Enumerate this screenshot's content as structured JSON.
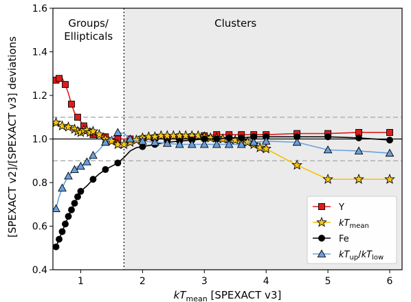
{
  "chart_data": {
    "type": "line",
    "xlabel": "kT_mean [SPEXACT v3]",
    "xlabel_main": "kT",
    "xlabel_sub": "mean",
    "xlabel_suffix": " [SPEXACT v3]",
    "ylabel": "[SPEXACT v2]/[SPEXACT v3] deviations",
    "xlim": [
      0.55,
      6.2
    ],
    "ylim": [
      0.4,
      1.6
    ],
    "xticks": [
      1,
      2,
      3,
      4,
      5,
      6
    ],
    "yticks": [
      0.4,
      0.6,
      0.8,
      1.0,
      1.2,
      1.4,
      1.6
    ],
    "grid": false,
    "legend_position": "bottom-right",
    "regions": [
      {
        "label_line1": "Groups/",
        "label_line2": "Ellipticals",
        "x_from": 0.55,
        "x_to": 1.7,
        "color": "#ffffff"
      },
      {
        "label_line1": "Clusters",
        "label_line2": "",
        "x_from": 1.7,
        "x_to": 6.2,
        "color": "#ebebeb"
      }
    ],
    "divider_x": 1.7,
    "reference_lines": [
      {
        "y": 1.0,
        "style": "solid",
        "color": "#000000"
      },
      {
        "y": 1.1,
        "style": "dashed",
        "color": "#b0b0b0"
      },
      {
        "y": 0.9,
        "style": "dashed",
        "color": "#b0b0b0"
      }
    ],
    "series": [
      {
        "name": "Y",
        "name_main": "Y",
        "name_sub": "",
        "name_mid": "",
        "name_main2": "",
        "name_sub2": "",
        "color": "#dd1c1c",
        "marker": "square",
        "marker_fill": "#dd1c1c",
        "x": [
          0.6,
          0.65,
          0.7,
          0.75,
          0.8,
          0.85,
          0.9,
          0.95,
          1.0,
          1.05,
          1.1,
          1.15,
          1.2,
          1.3,
          1.4,
          1.5,
          1.6,
          1.7,
          1.8,
          1.9,
          2.0,
          2.2,
          2.4,
          2.6,
          2.8,
          3.0,
          3.2,
          3.4,
          3.6,
          3.8,
          4.0,
          4.5,
          5.0,
          5.5,
          6.0
        ],
        "y": [
          1.27,
          1.278,
          1.28,
          1.25,
          1.21,
          1.16,
          1.12,
          1.1,
          1.08,
          1.06,
          1.04,
          1.03,
          1.02,
          1.01,
          1.01,
          1.005,
          1.0,
          1.0,
          1.0,
          1.0,
          1.0,
          1.005,
          1.005,
          1.01,
          1.01,
          1.015,
          1.02,
          1.02,
          1.02,
          1.02,
          1.02,
          1.025,
          1.025,
          1.03,
          1.03
        ],
        "marker_x": [
          0.6,
          0.65,
          0.75,
          0.85,
          0.95,
          1.05,
          1.2,
          1.4,
          1.6,
          1.8,
          2.0,
          2.2,
          2.4,
          2.6,
          2.8,
          3.0,
          3.2,
          3.4,
          3.6,
          3.8,
          4.0,
          4.5,
          5.0,
          5.5,
          6.0
        ]
      },
      {
        "name": "kT_mean",
        "name_main": "kT",
        "name_sub": "mean",
        "name_mid": "",
        "name_main2": "",
        "name_sub2": "",
        "color": "#f2c300",
        "marker": "star",
        "marker_fill": "#f5c518",
        "x": [
          0.6,
          0.7,
          0.8,
          0.9,
          0.95,
          1.0,
          1.05,
          1.1,
          1.15,
          1.2,
          1.3,
          1.4,
          1.5,
          1.6,
          1.7,
          1.8,
          1.9,
          2.0,
          2.1,
          2.2,
          2.3,
          2.4,
          2.5,
          2.6,
          2.7,
          2.8,
          2.9,
          3.0,
          3.1,
          3.2,
          3.3,
          3.4,
          3.5,
          3.6,
          3.7,
          3.8,
          3.9,
          4.0,
          4.5,
          5.0,
          5.5,
          6.0
        ],
        "y": [
          1.075,
          1.06,
          1.055,
          1.045,
          1.035,
          1.03,
          1.04,
          1.04,
          1.03,
          1.035,
          1.02,
          1.0,
          0.99,
          0.975,
          0.975,
          0.985,
          0.995,
          1.005,
          1.01,
          1.01,
          1.015,
          1.015,
          1.015,
          1.015,
          1.015,
          1.015,
          1.015,
          1.01,
          1.005,
          1.005,
          1.0,
          1.0,
          0.995,
          0.99,
          0.985,
          0.975,
          0.96,
          0.955,
          0.88,
          0.815,
          0.815,
          0.815
        ]
      },
      {
        "name": "Fe",
        "name_main": "Fe",
        "name_sub": "",
        "name_mid": "",
        "name_main2": "",
        "name_sub2": "",
        "color": "#000000",
        "marker": "circle",
        "marker_fill": "#000000",
        "x": [
          0.6,
          0.65,
          0.7,
          0.75,
          0.8,
          0.85,
          0.9,
          0.95,
          1.0,
          1.1,
          1.2,
          1.3,
          1.4,
          1.5,
          1.6,
          1.7,
          1.8,
          1.9,
          2.0,
          2.2,
          2.4,
          2.6,
          2.8,
          3.0,
          3.2,
          3.4,
          3.6,
          3.8,
          4.0,
          4.5,
          5.0,
          5.5,
          6.0
        ],
        "y": [
          0.505,
          0.54,
          0.575,
          0.61,
          0.645,
          0.675,
          0.705,
          0.735,
          0.76,
          0.785,
          0.815,
          0.84,
          0.86,
          0.875,
          0.89,
          0.915,
          0.945,
          0.96,
          0.965,
          0.975,
          0.985,
          0.99,
          0.995,
          1.0,
          1.0,
          1.005,
          1.005,
          1.01,
          1.01,
          1.01,
          1.01,
          1.005,
          0.995
        ],
        "marker_x": [
          0.6,
          0.65,
          0.7,
          0.75,
          0.8,
          0.85,
          0.9,
          0.95,
          1.0,
          1.2,
          1.4,
          1.6,
          2.0,
          2.2,
          2.4,
          2.6,
          2.8,
          3.0,
          3.2,
          3.4,
          3.6,
          3.8,
          4.0,
          4.5,
          5.0,
          5.5,
          6.0
        ]
      },
      {
        "name": "kT_up/kT_low",
        "name_main": "kT",
        "name_sub": "up",
        "name_mid": "/",
        "name_main2": "kT",
        "name_sub2": "low",
        "color": "#6a9fdc",
        "marker": "triangle",
        "marker_fill": "#6a9fdc",
        "x": [
          0.6,
          0.65,
          0.7,
          0.75,
          0.8,
          0.85,
          0.9,
          0.95,
          1.0,
          1.05,
          1.1,
          1.15,
          1.2,
          1.3,
          1.4,
          1.5,
          1.6,
          1.7,
          1.8,
          1.9,
          2.0,
          2.2,
          2.4,
          2.6,
          2.8,
          3.0,
          3.2,
          3.4,
          3.6,
          3.8,
          4.0,
          4.5,
          5.0,
          5.5,
          6.0
        ],
        "y": [
          0.68,
          0.735,
          0.775,
          0.805,
          0.83,
          0.845,
          0.86,
          0.875,
          0.875,
          0.885,
          0.895,
          0.905,
          0.925,
          0.95,
          0.985,
          1.005,
          1.03,
          1.025,
          1.0,
          0.99,
          0.99,
          0.985,
          0.98,
          0.975,
          0.975,
          0.975,
          0.975,
          0.975,
          0.975,
          0.985,
          0.99,
          0.985,
          0.95,
          0.945,
          0.935
        ],
        "marker_x": [
          0.6,
          0.7,
          0.8,
          0.9,
          1.0,
          1.1,
          1.2,
          1.4,
          1.6,
          1.8,
          2.0,
          2.2,
          2.4,
          2.6,
          2.8,
          3.0,
          3.2,
          3.4,
          3.6,
          3.8,
          4.0,
          4.5,
          5.0,
          5.5,
          6.0
        ]
      }
    ]
  }
}
